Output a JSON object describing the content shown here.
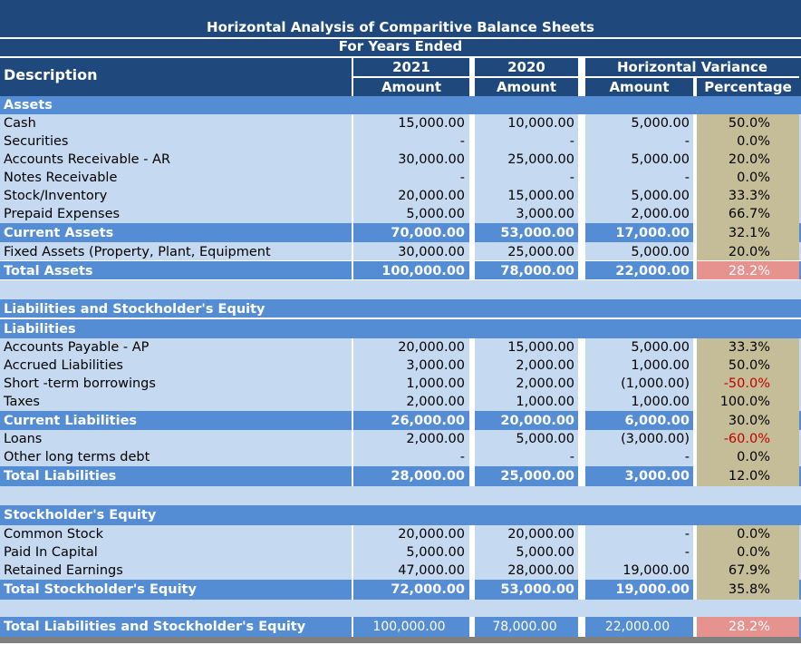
{
  "header": {
    "title": "Horizontal Analysis of Comparitive Balance Sheets",
    "subtitle": "For Years Ended",
    "description": "Description",
    "year_a": "2021",
    "year_b": "2020",
    "variance": "Horizontal Variance",
    "amount": "Amount",
    "percentage": "Percentage"
  },
  "colors": {
    "navy": "#1f497d",
    "mid_blue": "#4f81bd",
    "section_blue": "#548dd4",
    "light_blue": "#c5d9f1",
    "tan": "#c4bd97",
    "pink": "#e6928f",
    "negative": "#c00000"
  },
  "rows": [
    {
      "label": "Assets"
    },
    {
      "label": "Cash",
      "a": "15,000.00",
      "b": "10,000.00",
      "v": "5,000.00",
      "p": "50.0%"
    },
    {
      "label": "Securities",
      "a": "-",
      "b": "-",
      "v": "-",
      "p": "0.0%"
    },
    {
      "label": "Accounts Receivable - AR",
      "a": "30,000.00",
      "b": "25,000.00",
      "v": "5,000.00",
      "p": "20.0%"
    },
    {
      "label": "Notes Receivable",
      "a": "-",
      "b": "-",
      "v": "-",
      "p": "0.0%"
    },
    {
      "label": "Stock/Inventory",
      "a": "20,000.00",
      "b": "15,000.00",
      "v": "5,000.00",
      "p": "33.3%"
    },
    {
      "label": "Prepaid Expenses",
      "a": "5,000.00",
      "b": "3,000.00",
      "v": "2,000.00",
      "p": "66.7%"
    },
    {
      "label": "Current Assets",
      "a": "70,000.00",
      "b": "53,000.00",
      "v": "17,000.00",
      "p": "32.1%"
    },
    {
      "label": "Fixed Assets (Property, Plant, Equipment",
      "a": "30,000.00",
      "b": "25,000.00",
      "v": "5,000.00",
      "p": "20.0%"
    },
    {
      "label": "Total Assets",
      "a": "100,000.00",
      "b": "78,000.00",
      "v": "22,000.00",
      "p": "28.2%"
    },
    {
      "label": "Liabilities and Stockholder's Equity"
    },
    {
      "label": "Liabilities"
    },
    {
      "label": "Accounts Payable - AP",
      "a": "20,000.00",
      "b": "15,000.00",
      "v": "5,000.00",
      "p": "33.3%"
    },
    {
      "label": "Accrued Liabilities",
      "a": "3,000.00",
      "b": "2,000.00",
      "v": "1,000.00",
      "p": "50.0%"
    },
    {
      "label": "Short -term borrowings",
      "a": "1,000.00",
      "b": "2,000.00",
      "v": "(1,000.00)",
      "p": "-50.0%"
    },
    {
      "label": "Taxes",
      "a": "2,000.00",
      "b": "1,000.00",
      "v": "1,000.00",
      "p": "100.0%"
    },
    {
      "label": "Current Liabilities",
      "a": "26,000.00",
      "b": "20,000.00",
      "v": "6,000.00",
      "p": "30.0%"
    },
    {
      "label": "Loans",
      "a": "2,000.00",
      "b": "5,000.00",
      "v": "(3,000.00)",
      "p": "-60.0%"
    },
    {
      "label": "Other long terms debt",
      "a": "-",
      "b": "-",
      "v": "-",
      "p": "0.0%"
    },
    {
      "label": "Total Liabilities",
      "a": "28,000.00",
      "b": "25,000.00",
      "v": "3,000.00",
      "p": "12.0%"
    },
    {
      "label": "Stockholder's Equity"
    },
    {
      "label": "Common Stock",
      "a": "20,000.00",
      "b": "20,000.00",
      "v": "-",
      "p": "0.0%"
    },
    {
      "label": "Paid In Capital",
      "a": "5,000.00",
      "b": "5,000.00",
      "v": "-",
      "p": "0.0%"
    },
    {
      "label": "Retained Earnings",
      "a": "47,000.00",
      "b": "28,000.00",
      "v": "19,000.00",
      "p": "67.9%"
    },
    {
      "label": "Total Stockholder's Equity",
      "a": "72,000.00",
      "b": "53,000.00",
      "v": "19,000.00",
      "p": "35.8%"
    },
    {
      "label": "Total Liabilities and Stockholder's Equity",
      "a": "100,000.00",
      "b": "78,000.00",
      "v": "22,000.00",
      "p": "28.2%"
    }
  ]
}
